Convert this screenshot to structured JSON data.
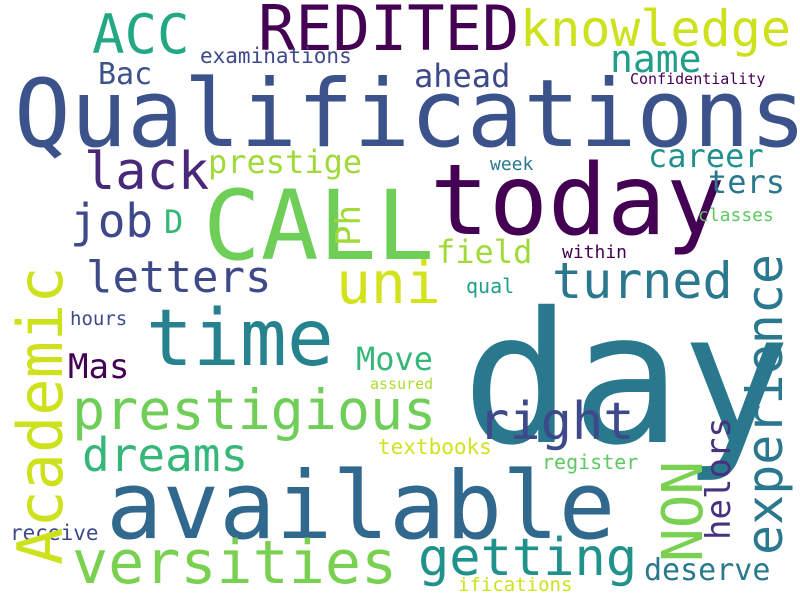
{
  "words": {
    "day": {
      "text": "day",
      "color": "#2a788e"
    },
    "qualifications": {
      "text": "Qualifications",
      "color": "#3b528b"
    },
    "available": {
      "text": "available",
      "color": "#31688e"
    },
    "call": {
      "text": "CALL",
      "color": "#6ece58"
    },
    "today": {
      "text": "today",
      "color": "#440154"
    },
    "time": {
      "text": "time",
      "color": "#26828e"
    },
    "academic": {
      "text": "Academic",
      "color": "#cde11d"
    },
    "prestigious": {
      "text": "prestigious",
      "color": "#6ece58"
    },
    "versities": {
      "text": "versities",
      "color": "#7ad151"
    },
    "experience": {
      "text": "experience",
      "color": "#2a788e"
    },
    "redited": {
      "text": "REDITED",
      "color": "#440154"
    },
    "acc": {
      "text": "ACC",
      "color": "#22a884"
    },
    "knowledge": {
      "text": "knowledge",
      "color": "#cde11d"
    },
    "uni": {
      "text": "uni",
      "color": "#d2e21b"
    },
    "non": {
      "text": "NON",
      "color": "#7ad151"
    },
    "getting": {
      "text": "getting",
      "color": "#21918c"
    },
    "turned": {
      "text": "turned",
      "color": "#2a788e"
    },
    "lack": {
      "text": "lack",
      "color": "#482878"
    },
    "job": {
      "text": "job",
      "color": "#3e4989"
    },
    "letters": {
      "text": "letters",
      "color": "#3e4989"
    },
    "dreams": {
      "text": "dreams",
      "color": "#35b779"
    },
    "right": {
      "text": "right",
      "color": "#3e4989"
    },
    "name": {
      "text": "name",
      "color": "#1f9e89"
    },
    "helors": {
      "text": "helors",
      "color": "#46327e"
    },
    "career": {
      "text": "career",
      "color": "#21918c"
    },
    "prestige": {
      "text": "prestige",
      "color": "#a0da39"
    },
    "ahead": {
      "text": "ahead",
      "color": "#3e4989"
    },
    "bac": {
      "text": "Bac",
      "color": "#3b528b"
    },
    "field": {
      "text": "field",
      "color": "#a0da39"
    },
    "move": {
      "text": "Move",
      "color": "#35b779"
    },
    "deserve": {
      "text": "deserve",
      "color": "#2a788e"
    },
    "mas": {
      "text": "Mas",
      "color": "#440154"
    },
    "ph": {
      "text": "Ph",
      "color": "#a0da39"
    },
    "d": {
      "text": "D",
      "color": "#35b779"
    },
    "ters": {
      "text": "ters",
      "color": "#2a788e"
    },
    "examinations": {
      "text": "examinations",
      "color": "#3e4989"
    },
    "confidentiality": {
      "text": "Confidentiality",
      "color": "#440154"
    },
    "week": {
      "text": "week",
      "color": "#2a788e"
    },
    "classes": {
      "text": "classes",
      "color": "#5ec962"
    },
    "within": {
      "text": "within",
      "color": "#440154"
    },
    "qual": {
      "text": "qual",
      "color": "#1f9e89"
    },
    "hours": {
      "text": "hours",
      "color": "#3e4989"
    },
    "assured": {
      "text": "assured",
      "color": "#addc30"
    },
    "textbooks": {
      "text": "textbooks",
      "color": "#d2e21b"
    },
    "register": {
      "text": "register",
      "color": "#5ec962"
    },
    "receive": {
      "text": "receive",
      "color": "#3e4989"
    },
    "ifications": {
      "text": "ifications",
      "color": "#cde11d"
    }
  }
}
